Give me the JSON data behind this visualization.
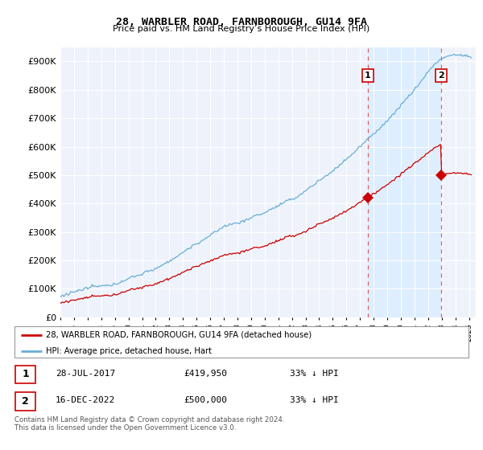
{
  "title": "28, WARBLER ROAD, FARNBOROUGH, GU14 9FA",
  "subtitle": "Price paid vs. HM Land Registry’s House Price Index (HPI)",
  "ylabel_ticks": [
    "£0",
    "£100K",
    "£200K",
    "£300K",
    "£400K",
    "£500K",
    "£600K",
    "£700K",
    "£800K",
    "£900K"
  ],
  "ytick_values": [
    0,
    100000,
    200000,
    300000,
    400000,
    500000,
    600000,
    700000,
    800000,
    900000
  ],
  "ylim": [
    0,
    950000
  ],
  "xlim_start": 1995.0,
  "xlim_end": 2025.5,
  "hpi_color": "#6aaed6",
  "price_color": "#cc0000",
  "vline_color": "#e06060",
  "shade_color": "#ddeeff",
  "sale1_x": 2017.57,
  "sale1_y": 419950,
  "sale2_x": 2022.96,
  "sale2_y": 500000,
  "sale1_label": "28-JUL-2017",
  "sale1_price": "£419,950",
  "sale1_pct": "33% ↓ HPI",
  "sale2_label": "16-DEC-2022",
  "sale2_price": "£500,000",
  "sale2_pct": "33% ↓ HPI",
  "legend_line1": "28, WARBLER ROAD, FARNBOROUGH, GU14 9FA (detached house)",
  "legend_line2": "HPI: Average price, detached house, Hart",
  "footnote": "Contains HM Land Registry data © Crown copyright and database right 2024.\nThis data is licensed under the Open Government Licence v3.0.",
  "background_color": "#eef3fb"
}
